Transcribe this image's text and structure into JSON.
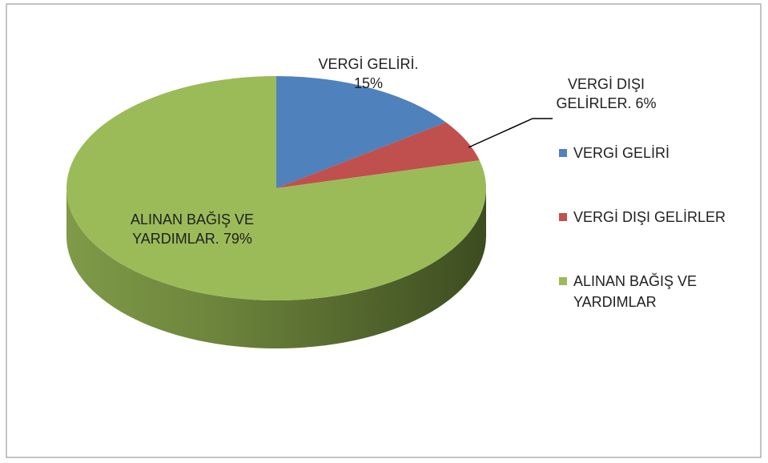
{
  "chart_data": {
    "type": "pie",
    "categories": [
      "VERGİ GELİRİ",
      "VERGİ DIŞI GELİRLER",
      "ALINAN BAĞIŞ VE YARDIMLAR"
    ],
    "values": [
      15,
      6,
      79
    ],
    "value_labels": [
      "15%",
      "6%",
      "79%"
    ],
    "label_names": [
      "VERGİ GELİRİ.",
      "VERGİ DIŞI GELİRLER.",
      "ALINAN BAĞIŞ VE YARDIMLAR."
    ],
    "colors": [
      "#4f81bd",
      "#c0504d",
      "#9bbb59"
    ],
    "legend": "right"
  }
}
